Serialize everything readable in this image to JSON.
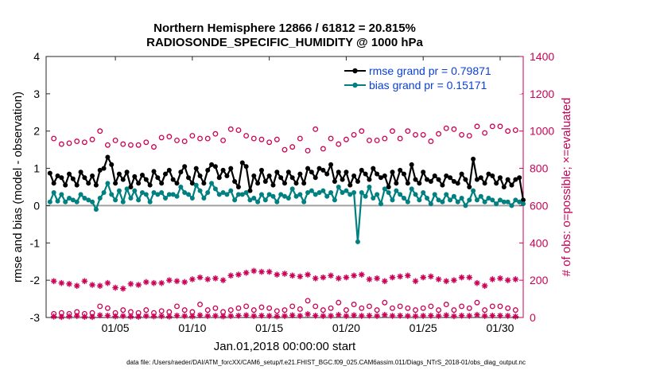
{
  "chart_data": {
    "type": "line",
    "title": "Northern Hemisphere 12866 / 61812 = 20.815%",
    "subtitle": "RADIOSONDE_SPECIFIC_HUMIDITY @ 1000 hPa",
    "xlabel": "Jan.01,2018 00:00:00 start",
    "ylabel_left": "rmse and bias (model - observation)",
    "ylabel_right": "# of obs: o=possible; ×=evaluated",
    "ylim_left": [
      -3,
      4
    ],
    "ylim_right": [
      0,
      1400
    ],
    "yticks_left": [
      "4",
      "3",
      "2",
      "1",
      "0",
      "-1",
      "-2",
      "-3"
    ],
    "yticks_right": [
      "1400",
      "1200",
      "1000",
      "800",
      "600",
      "400",
      "200",
      "0"
    ],
    "x_tick_labels": [
      "01/05",
      "01/10",
      "01/15",
      "01/20",
      "01/25",
      "01/30"
    ],
    "x_range_days": [
      0.5,
      31.5
    ],
    "x_tick_days": [
      5,
      10,
      15,
      20,
      25,
      30
    ],
    "n_points": 124,
    "interval_days": 0.25,
    "zero_line": true,
    "legend": {
      "placement": "top-right",
      "entries": [
        "rmse grand pr = 0.79871",
        "bias grand pr = 0.15171"
      ]
    },
    "colors": {
      "rmse": "#000000",
      "bias": "#008080",
      "obs": "#cc0055",
      "legend_text": "#0a3fd6",
      "zero_line": "#a0a0a0"
    },
    "series": [
      {
        "name": "rmse",
        "axis": "left",
        "marker": "filled-circle",
        "values": [
          0.87,
          0.6,
          0.8,
          0.75,
          0.55,
          0.85,
          0.72,
          0.55,
          0.9,
          0.75,
          0.6,
          0.8,
          0.55,
          0.95,
          1.0,
          1.3,
          1.1,
          0.6,
          0.85,
          0.7,
          0.9,
          0.5,
          0.78,
          0.6,
          0.82,
          0.7,
          0.55,
          0.92,
          0.75,
          0.6,
          0.85,
          0.95,
          0.7,
          0.6,
          0.9,
          1.05,
          0.75,
          0.6,
          1.0,
          0.8,
          0.6,
          0.95,
          1.1,
          1.05,
          0.75,
          0.95,
          0.8,
          1.0,
          0.65,
          0.5,
          1.15,
          1.05,
          0.4,
          0.8,
          0.6,
          0.95,
          0.65,
          0.8,
          0.55,
          0.9,
          0.75,
          0.6,
          0.9,
          0.75,
          0.6,
          0.85,
          0.6,
          1.0,
          0.9,
          0.75,
          1.0,
          0.95,
          0.85,
          1.1,
          0.65,
          0.9,
          0.7,
          0.9,
          0.55,
          0.8,
          0.65,
          0.95,
          0.85,
          0.7,
          1.0,
          0.85,
          0.75,
          0.8,
          0.5,
          0.9,
          0.6,
          0.95,
          0.85,
          0.6,
          1.1,
          0.7,
          0.6,
          0.9,
          0.7,
          0.65,
          0.8,
          0.7,
          0.55,
          0.8,
          0.75,
          0.65,
          0.6,
          0.85,
          0.7,
          0.5,
          1.25,
          0.7,
          0.75,
          0.6,
          0.85,
          0.8,
          0.6,
          0.75,
          0.5,
          0.7,
          0.55,
          0.7,
          0.75,
          0.15
        ]
      },
      {
        "name": "bias",
        "axis": "left",
        "marker": "filled-circle",
        "values": [
          0.1,
          0.35,
          0.12,
          0.3,
          0.1,
          0.2,
          0.15,
          0.1,
          0.3,
          0.2,
          0.15,
          0.1,
          -0.1,
          0.2,
          0.35,
          0.6,
          0.3,
          0.15,
          0.4,
          0.1,
          0.45,
          0.2,
          0.4,
          0.15,
          0.35,
          0.3,
          0.1,
          0.35,
          0.3,
          0.35,
          0.2,
          0.3,
          0.3,
          0.25,
          0.5,
          0.35,
          0.3,
          0.2,
          0.55,
          0.4,
          0.2,
          0.35,
          0.6,
          0.45,
          0.3,
          0.35,
          0.3,
          0.4,
          0.15,
          0.3,
          0.3,
          0.35,
          0.15,
          0.2,
          0.1,
          0.3,
          0.15,
          0.3,
          0.25,
          0.1,
          0.3,
          0.25,
          0.2,
          0.45,
          0.25,
          0.3,
          0.1,
          0.35,
          0.4,
          0.3,
          0.35,
          0.4,
          0.25,
          0.35,
          0.15,
          0.5,
          0.35,
          0.4,
          0.3,
          0.35,
          -0.97,
          0.35,
          0.25,
          0.5,
          0.2,
          0.3,
          0.05,
          0.45,
          0.35,
          0.15,
          0.4,
          0.3,
          0.2,
          0.1,
          0.45,
          0.3,
          0.15,
          0.35,
          0.2,
          0.05,
          0.3,
          0.15,
          0.1,
          0.3,
          0.15,
          0.25,
          0.1,
          0.2,
          0.0,
          0.15,
          0.4,
          0.15,
          0.25,
          0.1,
          0.2,
          0.15,
          0.05,
          0.15,
          0.1,
          0.1,
          0.0,
          0.15,
          0.1,
          0.05
        ]
      },
      {
        "name": "obs_possible_00Z",
        "axis": "right",
        "marker": "open-circle",
        "x_days": [
          1,
          2,
          3,
          4,
          5,
          6,
          7,
          8,
          9,
          10,
          11,
          12,
          13,
          14,
          15,
          16,
          17,
          18,
          19,
          20,
          21,
          22,
          23,
          24,
          25,
          26,
          27,
          28,
          29,
          30,
          31
        ],
        "values": [
          960,
          935,
          940,
          1000,
          950,
          925,
          940,
          965,
          950,
          975,
          960,
          950,
          1005,
          960,
          940,
          900,
          960,
          1010,
          960,
          955,
          1000,
          950,
          1000,
          1000,
          980,
          985,
          1010,
          975,
          990,
          1025,
          1005
        ]
      },
      {
        "name": "obs_possible_12Z",
        "axis": "right",
        "marker": "open-circle",
        "x_days": [
          1.5,
          2.5,
          3.5,
          4.5,
          5.5,
          6.5,
          7.5,
          8.5,
          9.5,
          10.5,
          11.5,
          12.5,
          13.5,
          14.5,
          15.5,
          16.5,
          17.5,
          18.5,
          19.5,
          20.5,
          21.5,
          22.5,
          23.5,
          24.5,
          25.5,
          26.5,
          27.5,
          28.5,
          29.5,
          30.5
        ],
        "values": [
          930,
          945,
          955,
          925,
          930,
          925,
          915,
          970,
          945,
          960,
          985,
          1010,
          975,
          955,
          955,
          915,
          895,
          905,
          930,
          980,
          950,
          960,
          960,
          980,
          945,
          1015,
          980,
          1025,
          1025,
          1000
        ]
      },
      {
        "name": "obs_possible_06Z_18Z",
        "axis": "right",
        "marker": "open-circle",
        "x_days": [
          1,
          1.5,
          2,
          2.5,
          3,
          3.5,
          4,
          4.5,
          5,
          5.5,
          6,
          6.5,
          7,
          7.5,
          8,
          8.5,
          9,
          9.5,
          10,
          10.5,
          11,
          11.5,
          12,
          12.5,
          13,
          13.5,
          14,
          14.5,
          15,
          15.5,
          16,
          16.5,
          17,
          17.5,
          18,
          18.5,
          19,
          19.5,
          20,
          20.5,
          21,
          21.5,
          22,
          22.5,
          23,
          23.5,
          24,
          24.5,
          25,
          25.5,
          26,
          26.5,
          27,
          27.5,
          28,
          28.5,
          29,
          29.5,
          30,
          30.5,
          31
        ],
        "values": [
          20,
          25,
          20,
          30,
          20,
          25,
          60,
          50,
          25,
          40,
          30,
          25,
          40,
          25,
          35,
          30,
          60,
          40,
          30,
          70,
          40,
          50,
          30,
          40,
          50,
          60,
          40,
          55,
          50,
          35,
          40,
          60,
          45,
          90,
          60,
          40,
          50,
          80,
          40,
          70,
          50,
          60,
          40,
          80,
          50,
          60,
          50,
          40,
          50,
          60,
          40,
          70,
          40,
          60,
          50,
          80,
          40,
          60,
          60,
          50,
          40
        ]
      },
      {
        "name": "obs_evaluated_main",
        "axis": "right",
        "marker": "asterisk",
        "x_days": [
          1,
          1.5,
          2,
          2.5,
          3,
          3.5,
          4,
          4.5,
          5,
          5.5,
          6,
          6.5,
          7,
          7.5,
          8,
          8.5,
          9,
          9.5,
          10,
          10.5,
          11,
          11.5,
          12,
          12.5,
          13,
          13.5,
          14,
          14.5,
          15,
          15.5,
          16,
          16.5,
          17,
          17.5,
          18,
          18.5,
          19,
          19.5,
          20,
          20.5,
          21,
          21.5,
          22,
          22.5,
          23,
          23.5,
          24,
          24.5,
          25,
          25.5,
          26,
          26.5,
          27,
          27.5,
          28,
          28.5,
          29,
          29.5,
          30,
          30.5,
          31
        ],
        "values": [
          195,
          185,
          180,
          170,
          195,
          175,
          170,
          185,
          160,
          155,
          180,
          175,
          190,
          185,
          185,
          200,
          195,
          190,
          205,
          215,
          205,
          210,
          200,
          225,
          230,
          240,
          250,
          245,
          245,
          230,
          235,
          225,
          220,
          230,
          210,
          215,
          225,
          210,
          215,
          225,
          230,
          205,
          210,
          195,
          215,
          220,
          225,
          195,
          215,
          220,
          205,
          195,
          200,
          215,
          215,
          185,
          170,
          205,
          210,
          200,
          205
        ]
      },
      {
        "name": "obs_evaluated_low",
        "axis": "right",
        "marker": "asterisk",
        "x_days": [
          1,
          1.5,
          2,
          2.5,
          3,
          3.5,
          4,
          4.5,
          5,
          5.5,
          6,
          6.5,
          7,
          7.5,
          8,
          8.5,
          9,
          9.5,
          10,
          10.5,
          11,
          11.5,
          12,
          12.5,
          13,
          13.5,
          14,
          14.5,
          15,
          15.5,
          16,
          16.5,
          17,
          17.5,
          18,
          18.5,
          19,
          19.5,
          20,
          20.5,
          21,
          21.5,
          22,
          22.5,
          23,
          23.5,
          24,
          24.5,
          25,
          25.5,
          26,
          26.5,
          27,
          27.5,
          28,
          28.5,
          29,
          29.5,
          30,
          30.5,
          31
        ],
        "values": [
          5,
          3,
          6,
          8,
          4,
          3,
          12,
          10,
          6,
          8,
          5,
          4,
          8,
          6,
          7,
          5,
          10,
          8,
          6,
          12,
          8,
          9,
          6,
          8,
          10,
          12,
          8,
          10,
          9,
          6,
          8,
          12,
          9,
          18,
          10,
          8,
          9,
          14,
          8,
          12,
          9,
          10,
          8,
          14,
          9,
          10,
          8,
          7,
          9,
          10,
          8,
          12,
          7,
          10,
          9,
          14,
          8,
          10,
          10,
          9,
          5
        ]
      }
    ]
  },
  "footer": {
    "text": "data file: /Users/raeder/DAI/ATM_forcXX/CAM6_setup/f.e21.FHIST_BGC.f09_025.CAM6assim.011/Diags_NTrS_2018-01/obs_diag_output.nc"
  }
}
